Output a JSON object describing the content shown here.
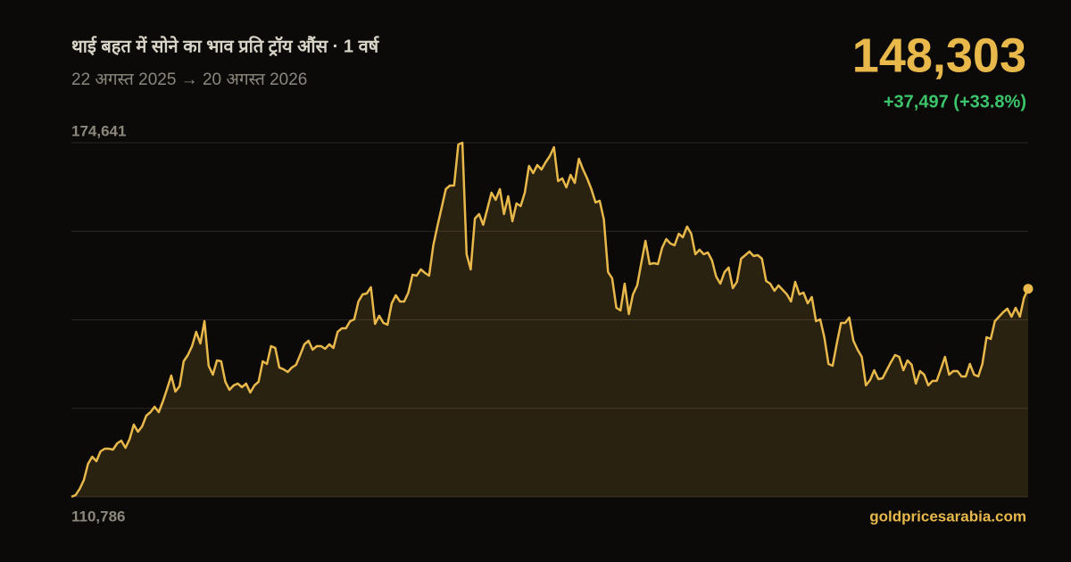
{
  "chart_data": {
    "type": "area",
    "title": "थाई बहत में सोने का भाव प्रति ट्रॉय औंस · 1 वर्ष",
    "subtitle": "22 अगस्त 2025 → 20 अगस्त 2026",
    "current_value": "148,303",
    "change": "+37,497 (+33.8%)",
    "source": "goldpricesarabia.com",
    "color": "#e8b84a",
    "change_color": "#3cc46a",
    "ylim": [
      110786,
      174641
    ],
    "yticks": [
      {
        "value": 110786,
        "label": "110,786"
      },
      {
        "value": 174641,
        "label": "174,641"
      }
    ],
    "grid": true,
    "grid_divisions": 4,
    "values": [
      110806,
      111110,
      112230,
      113840,
      116740,
      118020,
      117220,
      118990,
      119470,
      119470,
      119310,
      120440,
      120920,
      119630,
      121240,
      123810,
      122530,
      123490,
      125420,
      126060,
      127030,
      126060,
      127990,
      130250,
      132660,
      129760,
      130730,
      135230,
      136360,
      137970,
      140540,
      138450,
      142470,
      134430,
      132820,
      135390,
      135230,
      131530,
      130090,
      130890,
      131210,
      130570,
      131210,
      129600,
      130890,
      131530,
      135230,
      134750,
      137970,
      137650,
      134110,
      133790,
      133300,
      134110,
      134590,
      136360,
      138290,
      138930,
      137320,
      137970,
      137970,
      137490,
      138290,
      137650,
      140540,
      141180,
      141180,
      142470,
      142790,
      146010,
      147300,
      147460,
      148580,
      141990,
      143440,
      142150,
      141830,
      145690,
      147140,
      146010,
      146010,
      147620,
      150840,
      150670,
      151800,
      151160,
      150670,
      156140,
      159680,
      162900,
      166280,
      166920,
      166920,
      174320,
      174641,
      154540,
      151800,
      160970,
      161770,
      159840,
      162740,
      165630,
      164350,
      166280,
      161770,
      164990,
      160490,
      163700,
      163220,
      165630,
      170460,
      169170,
      170620,
      169820,
      171100,
      172230,
      173840,
      167720,
      168210,
      166600,
      168850,
      167400,
      171750,
      169820,
      168210,
      166280,
      163860,
      164190,
      160810,
      151320,
      150190,
      144880,
      144400,
      149230,
      143760,
      147300,
      148910,
      152930,
      156950,
      152770,
      152930,
      152770,
      155660,
      157270,
      156470,
      156140,
      158230,
      157590,
      159520,
      158230,
      154540,
      155340,
      154540,
      154860,
      153410,
      150510,
      149230,
      151320,
      152120,
      148420,
      149550,
      153730,
      154370,
      155020,
      154210,
      154370,
      153730,
      149710,
      149230,
      147940,
      148910,
      148100,
      147300,
      146010,
      149550,
      147300,
      147620,
      145690,
      146810,
      142470,
      142790,
      139580,
      134750,
      134430,
      138450,
      142150,
      142150,
      143110,
      138930,
      137320,
      136040,
      130890,
      131860,
      133620,
      132020,
      132180,
      133620,
      135070,
      136360,
      136040,
      133620,
      135390,
      134590,
      131210,
      133460,
      132820,
      130890,
      131690,
      131690,
      133790,
      136040,
      132820,
      133460,
      133460,
      132500,
      132500,
      134750,
      132820,
      132500,
      134750,
      139580,
      139250,
      142470,
      143280,
      144080,
      144720,
      143280,
      144880,
      143280,
      146650,
      148303
    ]
  }
}
